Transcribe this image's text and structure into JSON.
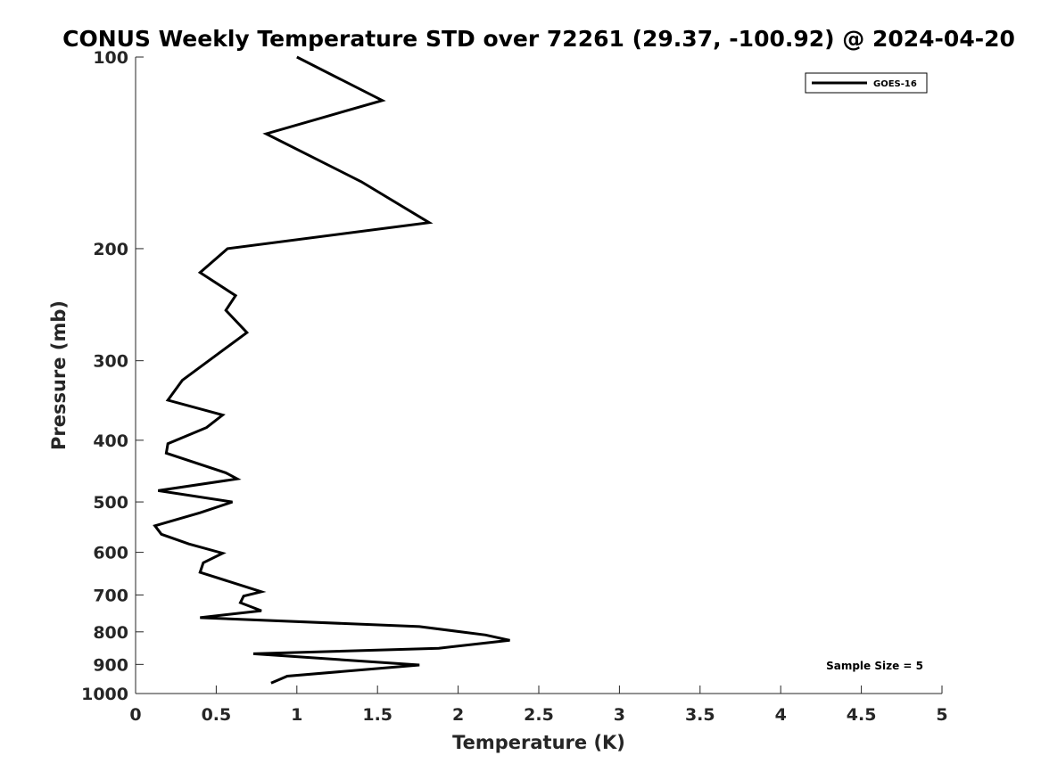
{
  "chart_data": {
    "type": "line",
    "title": "CONUS Weekly Temperature STD over 72261 (29.37, -100.92) @ 2024-04-20",
    "xlabel": "Temperature (K)",
    "ylabel": "Pressure (mb)",
    "xlim": [
      0,
      5
    ],
    "ylim": [
      100,
      1000
    ],
    "y_scale": "log",
    "y_reversed": true,
    "x_ticks": [
      0,
      0.5,
      1,
      1.5,
      2,
      2.5,
      3,
      3.5,
      4,
      4.5,
      5
    ],
    "x_tick_labels": [
      "0",
      "0.5",
      "1",
      "1.5",
      "2",
      "2.5",
      "3",
      "3.5",
      "4",
      "4.5",
      "5"
    ],
    "y_ticks": [
      100,
      200,
      300,
      400,
      500,
      600,
      700,
      800,
      900,
      1000
    ],
    "y_tick_labels": [
      "100",
      "200",
      "300",
      "400",
      "500",
      "600",
      "700",
      "800",
      "900",
      "1000"
    ],
    "grid": false,
    "legend_position": "top-right",
    "annotation": "Sample Size = 5",
    "series": [
      {
        "name": "GOES-16",
        "color": "#000000",
        "points": [
          [
            1.0,
            100
          ],
          [
            1.53,
            117
          ],
          [
            0.81,
            132
          ],
          [
            1.4,
            157
          ],
          [
            1.82,
            182
          ],
          [
            0.57,
            200
          ],
          [
            0.4,
            218
          ],
          [
            0.62,
            237
          ],
          [
            0.56,
            250
          ],
          [
            0.69,
            271
          ],
          [
            0.5,
            294
          ],
          [
            0.29,
            322
          ],
          [
            0.2,
            346
          ],
          [
            0.54,
            365
          ],
          [
            0.44,
            382
          ],
          [
            0.2,
            405
          ],
          [
            0.19,
            419
          ],
          [
            0.56,
            450
          ],
          [
            0.63,
            460
          ],
          [
            0.14,
            480
          ],
          [
            0.6,
            500
          ],
          [
            0.4,
            520
          ],
          [
            0.12,
            545
          ],
          [
            0.16,
            562
          ],
          [
            0.33,
            582
          ],
          [
            0.54,
            602
          ],
          [
            0.42,
            623
          ],
          [
            0.4,
            645
          ],
          [
            0.78,
            692
          ],
          [
            0.67,
            703
          ],
          [
            0.65,
            720
          ],
          [
            0.78,
            741
          ],
          [
            0.4,
            760
          ],
          [
            1.76,
            785
          ],
          [
            2.17,
            809
          ],
          [
            2.32,
            825
          ],
          [
            1.88,
            849
          ],
          [
            0.73,
            866
          ],
          [
            1.76,
            902
          ],
          [
            0.94,
            939
          ],
          [
            0.84,
            963
          ]
        ]
      }
    ]
  }
}
